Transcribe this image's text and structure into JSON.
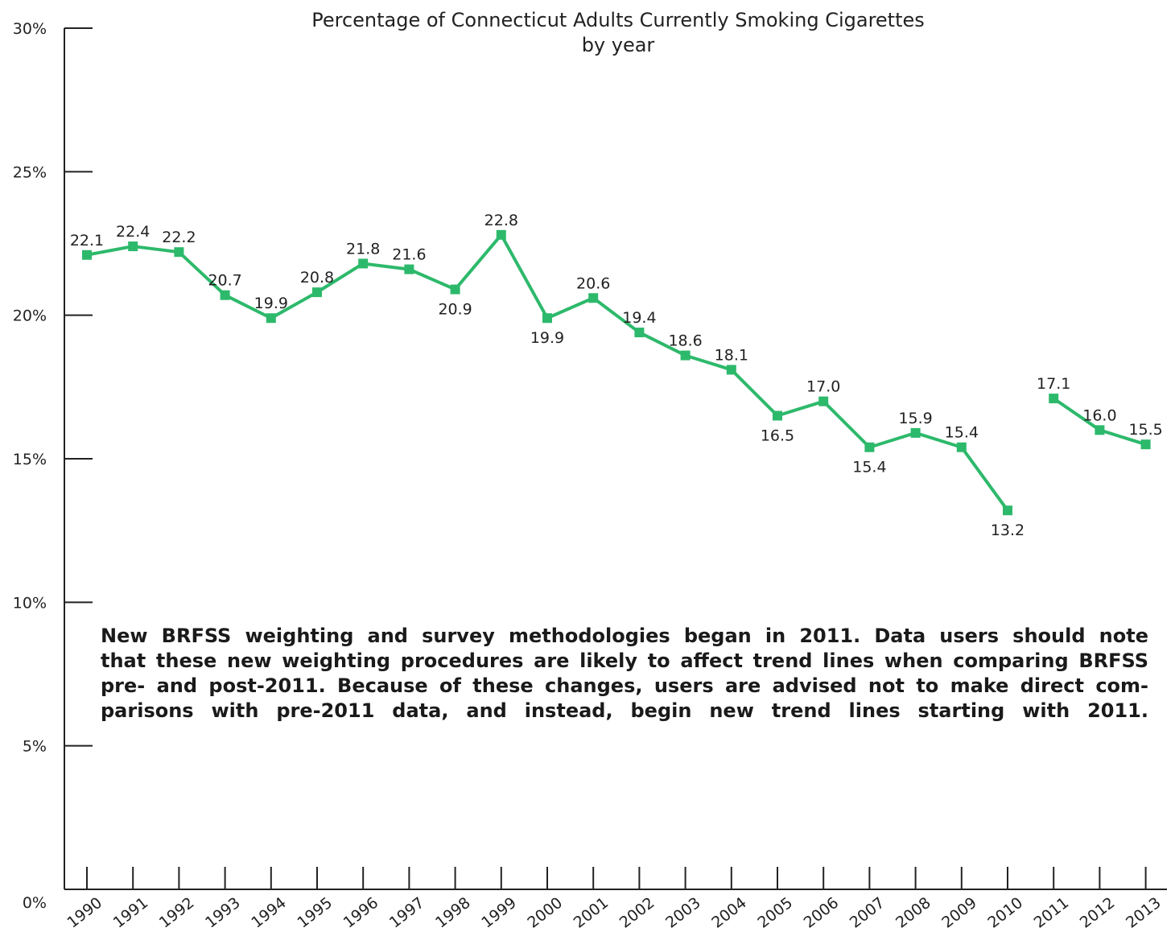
{
  "chart_data": {
    "type": "line",
    "title": "Percentage of Connecticut Adults Currently Smoking Cigarettes",
    "subtitle": "by year",
    "xlabel": "",
    "ylabel": "",
    "ylim": [
      0,
      30
    ],
    "yticks": [
      "0%",
      "5%",
      "10%",
      "15%",
      "20%",
      "25%",
      "30%"
    ],
    "categories": [
      "1990",
      "1991",
      "1992",
      "1993",
      "1994",
      "1995",
      "1996",
      "1997",
      "1998",
      "1999",
      "2000",
      "2001",
      "2002",
      "2003",
      "2004",
      "2005",
      "2006",
      "2007",
      "2008",
      "2009",
      "2010",
      "2011",
      "2012",
      "2013"
    ],
    "series": [
      {
        "values": [
          22.1,
          22.4,
          22.2,
          20.7,
          19.9,
          20.8,
          21.8,
          21.6,
          20.9,
          22.8,
          19.9,
          20.6,
          19.4,
          18.6,
          18.1,
          16.5,
          17.0,
          15.4,
          15.9,
          15.4,
          13.2,
          17.1,
          16.0,
          15.5
        ],
        "labels": [
          "22.1",
          "22.4",
          "22.2",
          "20.7",
          "19.9",
          "20.8",
          "21.8",
          "21.6",
          "20.9",
          "22.8",
          "19.9",
          "20.6",
          "19.4",
          "18.6",
          "18.1",
          "16.5",
          "17.0",
          "15.4",
          "15.9",
          "15.4",
          "13.2",
          "17.1",
          "16.0",
          "15.5"
        ],
        "segments": [
          [
            0,
            20
          ],
          [
            21,
            23
          ]
        ],
        "color": "#2db96b"
      }
    ],
    "grid": false,
    "legend": "none"
  },
  "note": {
    "lines": [
      "New BRFSS weighting and survey methodologies began in 2011. Data users should note",
      "that these new weighting procedures are likely to affect trend lines when comparing BRFSS",
      "pre- and post-2011. Because of these changes, users are advised not to make direct com-",
      "parisons with pre-2011 data, and instead, begin new trend lines starting with 2011."
    ]
  }
}
